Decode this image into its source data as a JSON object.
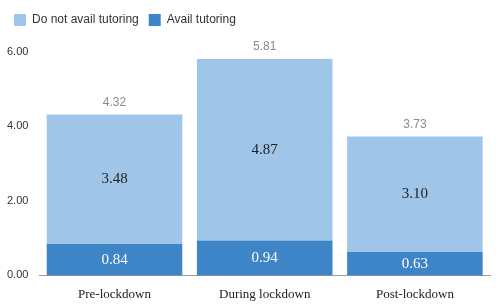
{
  "chart_data": {
    "type": "bar",
    "stacked": true,
    "data_labels": true,
    "grid": false,
    "legend": "top-left",
    "categories": [
      "Pre-lockdown",
      "During lockdown",
      "Post-lockdown"
    ],
    "series": [
      {
        "name": "Avail tutoring",
        "color": "#3d85c6",
        "values": [
          0.84,
          0.94,
          0.63
        ]
      },
      {
        "name": "Do not avail tutoring",
        "color": "#9fc5e8",
        "values": [
          3.48,
          4.87,
          3.1
        ],
        "value_labels": [
          "3.48",
          "4.87",
          "3.10"
        ]
      }
    ],
    "totals": [
      4.32,
      5.81,
      3.73
    ],
    "ylim": [
      0,
      6
    ],
    "yticks": [
      {
        "value": 0,
        "label": "0.00"
      },
      {
        "value": 2,
        "label": "2.00"
      },
      {
        "value": 4,
        "label": "4.00"
      },
      {
        "value": 6,
        "label": "6.00"
      }
    ]
  }
}
